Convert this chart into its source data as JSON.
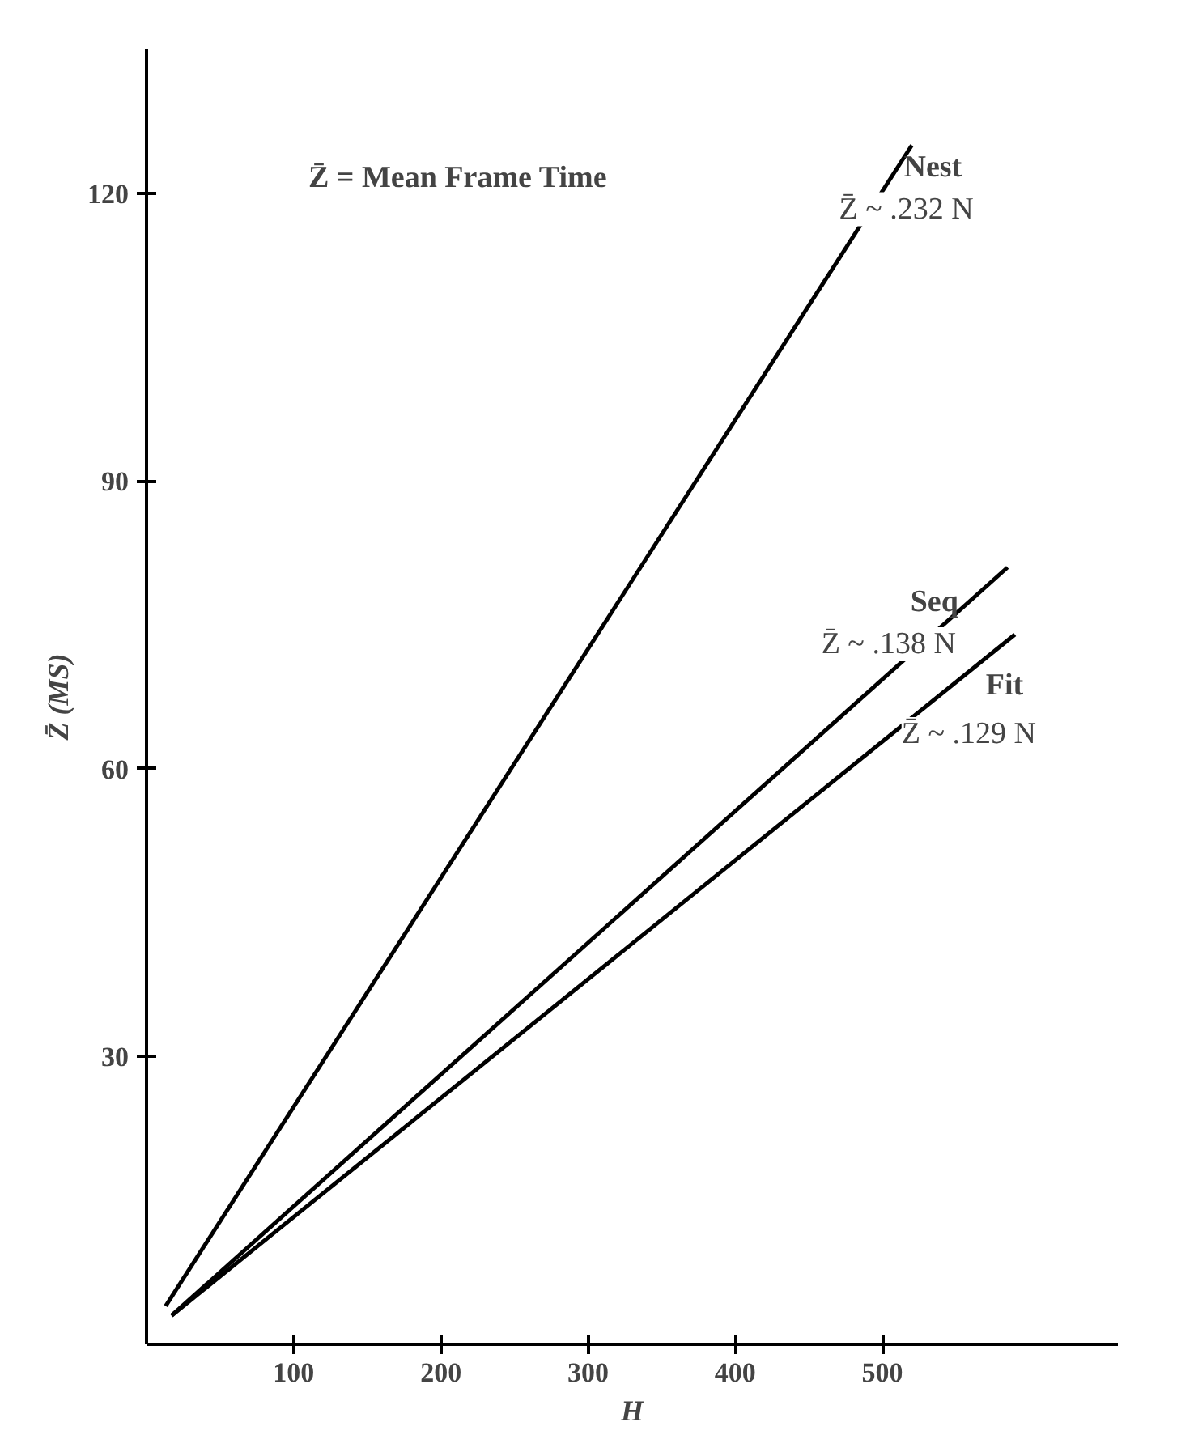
{
  "chart_data": {
    "type": "line",
    "xlabel": "H",
    "ylabel": "Z̄ (MS)",
    "xlim": [
      0,
      660
    ],
    "ylim": [
      0,
      135
    ],
    "xticks": [
      100,
      200,
      300,
      400,
      500
    ],
    "yticks": [
      30,
      60,
      90,
      120
    ],
    "grid": false,
    "marker": "none",
    "line_style": "solid",
    "series": [
      {
        "name": "Nest",
        "color": "#000000",
        "x": [
          13,
          520
        ],
        "values": [
          4,
          125
        ]
      },
      {
        "name": "Seq",
        "color": "#000000",
        "x": [
          17,
          585
        ],
        "values": [
          3,
          81
        ]
      },
      {
        "name": "Fit",
        "color": "#000000",
        "x": [
          17,
          590
        ],
        "values": [
          3,
          74
        ]
      }
    ],
    "annotations": [
      "Z̄ = Mean Frame Time",
      "Z̄ ~ .232 N",
      "Z̄ ~ .138 N",
      "Z̄ ~ .129 N"
    ]
  }
}
